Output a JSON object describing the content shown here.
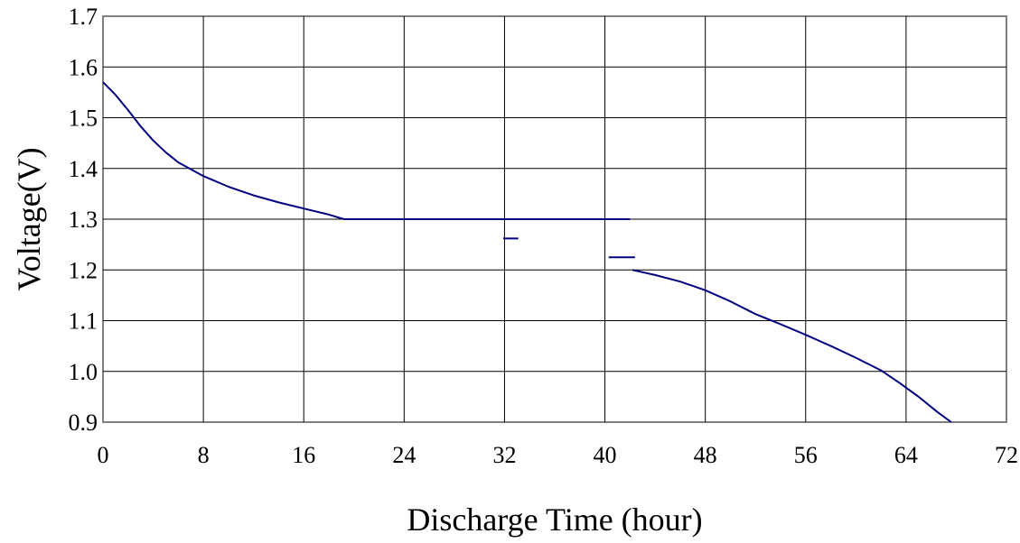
{
  "chart_data": {
    "type": "line",
    "xlabel": "Discharge Time (hour)",
    "ylabel": "Voltage(V)",
    "xlim": [
      0,
      72
    ],
    "ylim": [
      0.9,
      1.7
    ],
    "x_ticks": [
      0,
      8,
      16,
      24,
      32,
      40,
      48,
      56,
      64,
      72
    ],
    "y_ticks": [
      0.9,
      1.0,
      1.1,
      1.2,
      1.3,
      1.4,
      1.5,
      1.6,
      1.7
    ],
    "y_tick_labels": [
      "0.9",
      "1.0",
      "1.1",
      "1.2",
      "1.3",
      "1.4",
      "1.5",
      "1.6",
      "1.7"
    ],
    "grid": true,
    "line_color": "#000080",
    "series": [
      {
        "x": [
          0,
          1,
          2,
          3,
          4,
          5,
          6,
          8,
          10,
          12,
          14,
          16,
          18,
          19.2
        ],
        "y": [
          1.57,
          1.545,
          1.515,
          1.483,
          1.455,
          1.432,
          1.412,
          1.385,
          1.364,
          1.347,
          1.333,
          1.321,
          1.309,
          1.3
        ]
      },
      {
        "x": [
          19.2,
          42
        ],
        "y": [
          1.3,
          1.3
        ]
      },
      {
        "x": [
          31.9,
          33.1
        ],
        "y": [
          1.262,
          1.262
        ]
      },
      {
        "x": [
          40.3,
          42.4
        ],
        "y": [
          1.225,
          1.225
        ]
      },
      {
        "x": [
          42.2,
          44,
          46,
          48,
          50,
          52,
          54,
          56,
          58,
          60,
          62,
          63.5,
          65,
          66.5,
          67.6
        ],
        "y": [
          1.2,
          1.19,
          1.177,
          1.16,
          1.138,
          1.113,
          1.093,
          1.072,
          1.05,
          1.027,
          1.002,
          0.977,
          0.95,
          0.92,
          0.9
        ]
      }
    ]
  }
}
